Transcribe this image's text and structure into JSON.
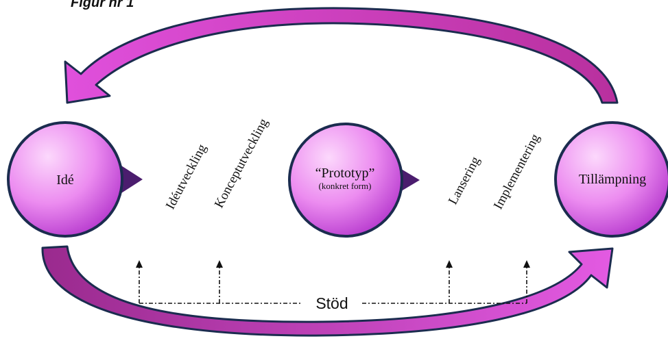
{
  "figure_label": "Figur nr 1",
  "nodes": {
    "idea": "Idé",
    "prototype_line1": "“Prototyp”",
    "prototype_line2": "(konkret form)",
    "application": "Tillämpning"
  },
  "steps": [
    "Idéutveckling",
    "Konceptutveckling",
    "Lansering",
    "Implementering"
  ],
  "support_label": "Stöd",
  "colors": {
    "circle_light": "#f6b6f9",
    "circle_dark": "#c045d6",
    "circle_outline": "#1b2c4f",
    "pointer": "#4b1d6e",
    "arrow_fill": "#cf3fd0",
    "arrow_outline": "#1b2c4f"
  }
}
